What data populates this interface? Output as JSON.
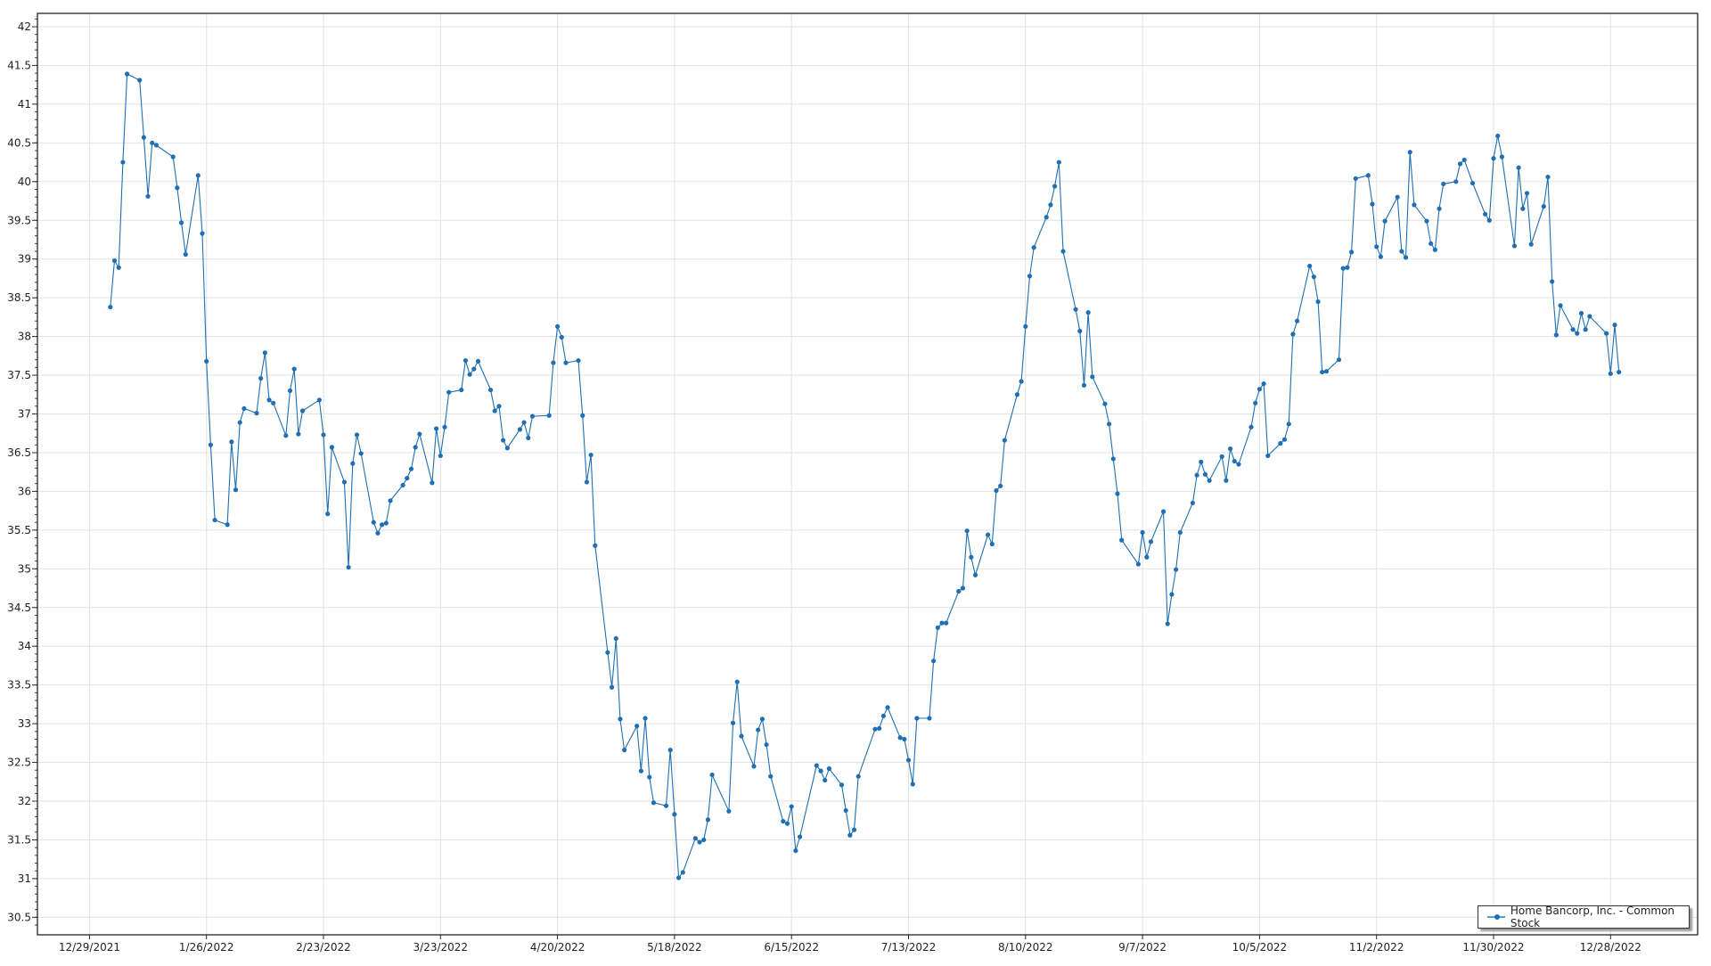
{
  "chart_data": {
    "type": "line",
    "title": "",
    "xlabel": "",
    "ylabel": "",
    "ylim": [
      30.4,
      42.2
    ],
    "y_ticks": [
      "30.5",
      "31",
      "31.5",
      "32",
      "32.5",
      "33",
      "33.5",
      "34",
      "34.5",
      "35",
      "35.5",
      "36",
      "36.5",
      "37",
      "37.5",
      "38",
      "38.5",
      "39",
      "39.5",
      "40",
      "40.5",
      "41",
      "41.5",
      "42"
    ],
    "x_ticks": [
      "12/29/2021",
      "1/26/2022",
      "2/23/2022",
      "3/23/2022",
      "4/20/2022",
      "5/18/2022",
      "6/15/2022",
      "7/13/2022",
      "8/10/2022",
      "9/7/2022",
      "10/5/2022",
      "11/2/2022",
      "11/30/2022",
      "12/28/2022"
    ],
    "grid": true,
    "legend_position": "bottom-right",
    "series": [
      {
        "name": "Home Bancorp, Inc. - Common Stock",
        "color": "#1f6fb2",
        "x": [
          "1/3/2022",
          "1/4/2022",
          "1/5/2022",
          "1/6/2022",
          "1/7/2022",
          "1/10/2022",
          "1/11/2022",
          "1/12/2022",
          "1/13/2022",
          "1/14/2022",
          "1/18/2022",
          "1/19/2022",
          "1/20/2022",
          "1/21/2022",
          "1/24/2022",
          "1/25/2022",
          "1/26/2022",
          "1/27/2022",
          "1/28/2022",
          "1/31/2022",
          "2/1/2022",
          "2/2/2022",
          "2/3/2022",
          "2/4/2022",
          "2/7/2022",
          "2/8/2022",
          "2/9/2022",
          "2/10/2022",
          "2/11/2022",
          "2/14/2022",
          "2/15/2022",
          "2/16/2022",
          "2/17/2022",
          "2/18/2022",
          "2/22/2022",
          "2/23/2022",
          "2/24/2022",
          "2/25/2022",
          "2/28/2022",
          "3/1/2022",
          "3/2/2022",
          "3/3/2022",
          "3/4/2022",
          "3/7/2022",
          "3/8/2022",
          "3/9/2022",
          "3/10/2022",
          "3/11/2022",
          "3/14/2022",
          "3/15/2022",
          "3/16/2022",
          "3/17/2022",
          "3/18/2022",
          "3/21/2022",
          "3/22/2022",
          "3/23/2022",
          "3/24/2022",
          "3/25/2022",
          "3/28/2022",
          "3/29/2022",
          "3/30/2022",
          "3/31/2022",
          "4/1/2022",
          "4/4/2022",
          "4/5/2022",
          "4/6/2022",
          "4/7/2022",
          "4/8/2022",
          "4/11/2022",
          "4/12/2022",
          "4/13/2022",
          "4/14/2022",
          "4/18/2022",
          "4/19/2022",
          "4/20/2022",
          "4/21/2022",
          "4/22/2022",
          "4/25/2022",
          "4/26/2022",
          "4/27/2022",
          "4/28/2022",
          "4/29/2022",
          "5/2/2022",
          "5/3/2022",
          "5/4/2022",
          "5/5/2022",
          "5/6/2022",
          "5/9/2022",
          "5/10/2022",
          "5/11/2022",
          "5/12/2022",
          "5/13/2022",
          "5/16/2022",
          "5/17/2022",
          "5/18/2022",
          "5/19/2022",
          "5/20/2022",
          "5/23/2022",
          "5/24/2022",
          "5/25/2022",
          "5/26/2022",
          "5/27/2022",
          "5/31/2022",
          "6/1/2022",
          "6/2/2022",
          "6/3/2022",
          "6/6/2022",
          "6/7/2022",
          "6/8/2022",
          "6/9/2022",
          "6/10/2022",
          "6/13/2022",
          "6/14/2022",
          "6/15/2022",
          "6/16/2022",
          "6/17/2022",
          "6/21/2022",
          "6/22/2022",
          "6/23/2022",
          "6/24/2022",
          "6/27/2022",
          "6/28/2022",
          "6/29/2022",
          "6/30/2022",
          "7/1/2022",
          "7/5/2022",
          "7/6/2022",
          "7/7/2022",
          "7/8/2022",
          "7/11/2022",
          "7/12/2022",
          "7/13/2022",
          "7/14/2022",
          "7/15/2022",
          "7/18/2022",
          "7/19/2022",
          "7/20/2022",
          "7/21/2022",
          "7/22/2022",
          "7/25/2022",
          "7/26/2022",
          "7/27/2022",
          "7/28/2022",
          "7/29/2022",
          "8/1/2022",
          "8/2/2022",
          "8/3/2022",
          "8/4/2022",
          "8/5/2022",
          "8/8/2022",
          "8/9/2022",
          "8/10/2022",
          "8/11/2022",
          "8/12/2022",
          "8/15/2022",
          "8/16/2022",
          "8/17/2022",
          "8/18/2022",
          "8/19/2022",
          "8/22/2022",
          "8/23/2022",
          "8/24/2022",
          "8/25/2022",
          "8/26/2022",
          "8/29/2022",
          "8/30/2022",
          "8/31/2022",
          "9/1/2022",
          "9/2/2022",
          "9/6/2022",
          "9/7/2022",
          "9/8/2022",
          "9/9/2022",
          "9/12/2022",
          "9/13/2022",
          "9/14/2022",
          "9/15/2022",
          "9/16/2022",
          "9/19/2022",
          "9/20/2022",
          "9/21/2022",
          "9/22/2022",
          "9/23/2022",
          "9/26/2022",
          "9/27/2022",
          "9/28/2022",
          "9/29/2022",
          "9/30/2022",
          "10/3/2022",
          "10/4/2022",
          "10/5/2022",
          "10/6/2022",
          "10/7/2022",
          "10/10/2022",
          "10/11/2022",
          "10/12/2022",
          "10/13/2022",
          "10/14/2022",
          "10/17/2022",
          "10/18/2022",
          "10/19/2022",
          "10/20/2022",
          "10/21/2022",
          "10/24/2022",
          "10/25/2022",
          "10/26/2022",
          "10/27/2022",
          "10/28/2022",
          "10/31/2022",
          "11/1/2022",
          "11/2/2022",
          "11/3/2022",
          "11/4/2022",
          "11/7/2022",
          "11/8/2022",
          "11/9/2022",
          "11/10/2022",
          "11/11/2022",
          "11/14/2022",
          "11/15/2022",
          "11/16/2022",
          "11/17/2022",
          "11/18/2022",
          "11/21/2022",
          "11/22/2022",
          "11/23/2022",
          "11/25/2022",
          "11/28/2022",
          "11/29/2022",
          "11/30/2022",
          "12/1/2022",
          "12/2/2022",
          "12/5/2022",
          "12/6/2022",
          "12/7/2022",
          "12/8/2022",
          "12/9/2022",
          "12/12/2022",
          "12/13/2022",
          "12/14/2022",
          "12/15/2022",
          "12/16/2022",
          "12/19/2022",
          "12/20/2022",
          "12/21/2022",
          "12/22/2022",
          "12/23/2022",
          "12/27/2022",
          "12/28/2022",
          "12/29/2022",
          "12/30/2022"
        ],
        "y": [
          38.38,
          38.98,
          38.89,
          40.25,
          41.39,
          41.31,
          40.57,
          39.81,
          40.5,
          40.47,
          40.32,
          39.92,
          39.47,
          39.06,
          40.08,
          39.33,
          37.68,
          36.6,
          35.63,
          35.57,
          36.64,
          36.02,
          36.89,
          37.07,
          37.01,
          37.46,
          37.79,
          37.18,
          37.14,
          36.72,
          37.3,
          37.58,
          36.74,
          37.04,
          37.18,
          36.73,
          35.71,
          36.57,
          36.12,
          35.02,
          36.36,
          36.73,
          36.49,
          35.6,
          35.46,
          35.57,
          35.59,
          35.88,
          36.08,
          36.17,
          36.29,
          36.57,
          36.74,
          36.11,
          36.81,
          36.46,
          36.83,
          37.28,
          37.31,
          37.69,
          37.51,
          37.58,
          37.68,
          37.31,
          37.04,
          37.1,
          36.66,
          36.56,
          36.8,
          36.89,
          36.69,
          36.97,
          36.98,
          37.66,
          38.13,
          37.99,
          37.66,
          37.69,
          36.98,
          36.12,
          36.47,
          35.3,
          33.92,
          33.47,
          34.1,
          33.06,
          32.66,
          32.97,
          32.39,
          33.07,
          32.31,
          31.98,
          31.94,
          32.66,
          31.83,
          31.01,
          31.08,
          31.52,
          31.47,
          31.5,
          31.76,
          32.34,
          31.87,
          33.01,
          33.54,
          32.84,
          32.45,
          32.92,
          33.06,
          32.73,
          32.32,
          31.74,
          31.71,
          31.93,
          31.36,
          31.54,
          32.46,
          32.39,
          32.27,
          32.42,
          32.21,
          31.88,
          31.56,
          31.63,
          32.32,
          32.93,
          32.94,
          33.1,
          33.21,
          32.82,
          32.8,
          32.53,
          32.22,
          33.07,
          33.07,
          33.81,
          34.24,
          34.3,
          34.3,
          34.71,
          34.75,
          35.49,
          35.15,
          34.92,
          35.44,
          35.32,
          36.01,
          36.07,
          36.66,
          37.25,
          37.42,
          38.13,
          38.78,
          39.15,
          39.54,
          39.7,
          39.94,
          40.25,
          39.1,
          38.35,
          38.07,
          37.37,
          38.31,
          37.48,
          37.13,
          36.87,
          36.42,
          35.97,
          35.37,
          35.06,
          35.47,
          35.15,
          35.35,
          35.74,
          34.29,
          34.67,
          34.99,
          35.47,
          35.85,
          36.21,
          36.38,
          36.22,
          36.14,
          36.45,
          36.14,
          36.55,
          36.39,
          36.35,
          36.83,
          37.14,
          37.32,
          37.39,
          36.46,
          36.62,
          36.67,
          36.87,
          38.03,
          38.2,
          38.91,
          38.77,
          38.45,
          37.54,
          37.55,
          37.7,
          38.88,
          38.89,
          39.09,
          40.04,
          40.08,
          39.71,
          39.16,
          39.03,
          39.49,
          39.8,
          39.1,
          39.02,
          40.38,
          39.7,
          39.49,
          39.2,
          39.12,
          39.65,
          39.97,
          40.0,
          40.23,
          40.28,
          39.98,
          39.58,
          39.5,
          40.3,
          40.59,
          40.32,
          39.17,
          40.18,
          39.65,
          39.85,
          39.19,
          39.68,
          40.06,
          38.71,
          38.02,
          38.4,
          38.09,
          38.04,
          38.3,
          38.09,
          38.26,
          38.04,
          37.52,
          38.15,
          37.54
        ]
      }
    ]
  }
}
